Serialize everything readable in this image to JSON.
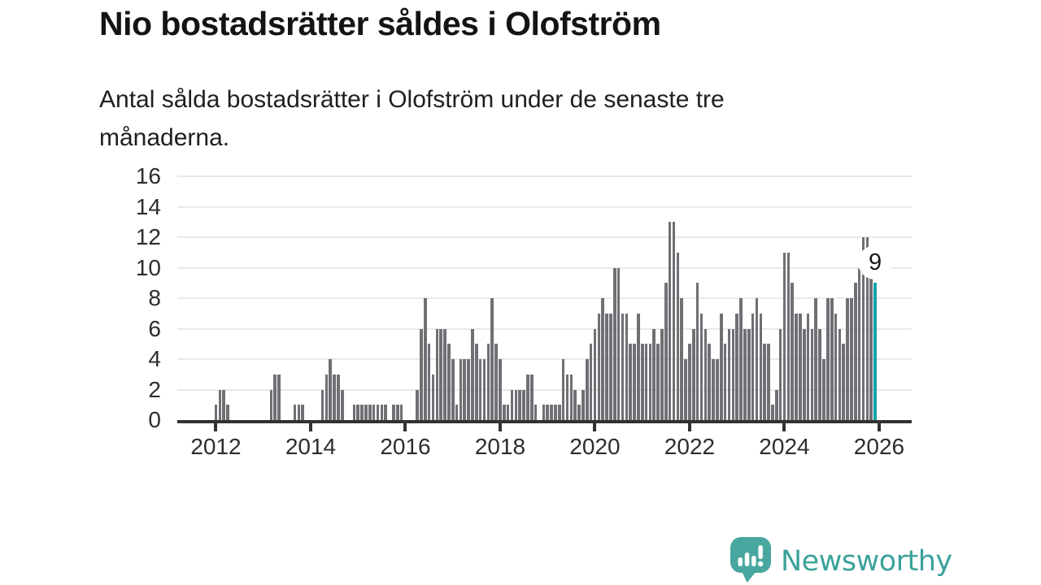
{
  "header": {
    "title": "Nio bostadsrätter såldes i Olofström",
    "subtitle": "Antal sålda bostadsrätter i Olofström under de senaste tre\nmånaderna."
  },
  "chart_data": {
    "type": "bar",
    "title": "Nio bostadsrätter såldes i Olofström",
    "xlabel": "",
    "ylabel": "",
    "start_month": "2011-04",
    "end_month": "2025-12",
    "frequency": "monthly",
    "series": [
      {
        "name": "Antal sålda bostadsrätter",
        "values": [
          0,
          0,
          0,
          0,
          0,
          0,
          0,
          0,
          0,
          1,
          2,
          2,
          1,
          0,
          0,
          0,
          0,
          0,
          0,
          0,
          0,
          0,
          0,
          2,
          3,
          3,
          0,
          0,
          0,
          1,
          1,
          1,
          0,
          0,
          0,
          0,
          2,
          3,
          4,
          3,
          3,
          2,
          0,
          0,
          1,
          1,
          1,
          1,
          1,
          1,
          1,
          1,
          1,
          0,
          1,
          1,
          1,
          0,
          0,
          0,
          2,
          6,
          8,
          5,
          3,
          6,
          6,
          6,
          5,
          4,
          1,
          4,
          4,
          4,
          6,
          5,
          4,
          4,
          5,
          8,
          5,
          4,
          1,
          1,
          2,
          2,
          2,
          2,
          3,
          3,
          1,
          0,
          1,
          1,
          1,
          1,
          1,
          4,
          3,
          3,
          2,
          1,
          2,
          4,
          5,
          6,
          7,
          8,
          7,
          7,
          10,
          10,
          7,
          7,
          5,
          5,
          7,
          5,
          5,
          5,
          6,
          5,
          6,
          9,
          13,
          13,
          11,
          8,
          4,
          5,
          6,
          9,
          7,
          6,
          5,
          4,
          4,
          7,
          5,
          6,
          6,
          7,
          8,
          6,
          6,
          7,
          8,
          7,
          5,
          5,
          1,
          2,
          6,
          11,
          11,
          9,
          7,
          7,
          6,
          7,
          6,
          8,
          6,
          4,
          8,
          8,
          7,
          6,
          5,
          8,
          8,
          9,
          10,
          12,
          12,
          11,
          9
        ]
      }
    ],
    "current": {
      "index": 176,
      "value": 9,
      "label": "9"
    },
    "ylim": [
      0,
      16
    ],
    "yticks": [
      0,
      2,
      4,
      6,
      8,
      10,
      12,
      14,
      16
    ],
    "xticks": [
      2012,
      2014,
      2016,
      2018,
      2020,
      2022,
      2024,
      2026
    ],
    "grid": true,
    "legend": "none",
    "colors": {
      "bar": "#6f6f74",
      "current_bar": "#12a3a8",
      "gridline": "#e9e9e9",
      "axis": "#323232",
      "tick_label": "#2d2d2d"
    }
  },
  "annotation": {
    "label": "9"
  },
  "logo": {
    "text": "Newsworthy",
    "color": "#3ba29a",
    "icon": "bar-chart-speech-bubble"
  }
}
